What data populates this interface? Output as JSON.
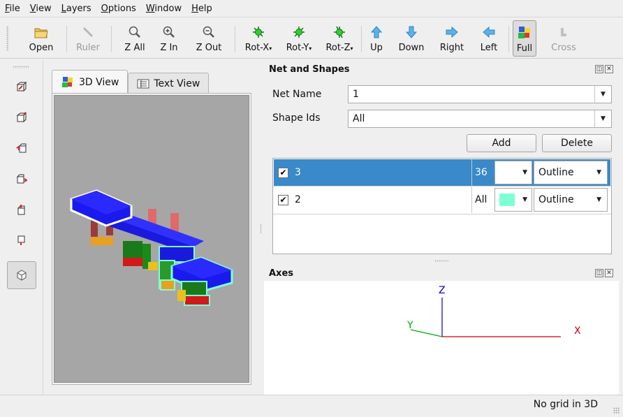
{
  "menu": [
    {
      "first": "F",
      "rest": "ile"
    },
    {
      "first": "V",
      "rest": "iew"
    },
    {
      "first": "L",
      "rest": "ayers"
    },
    {
      "first": "O",
      "rest": "ptions"
    },
    {
      "first": "W",
      "rest": "indow"
    },
    {
      "first": "H",
      "rest": "elp"
    }
  ],
  "toolbar": {
    "open": "Open",
    "ruler": "Ruler",
    "zall": "Z All",
    "zin": "Z In",
    "zout": "Z Out",
    "rotx": "Rot-X",
    "roty": "Rot-Y",
    "rotz": "Rot-Z",
    "up": "Up",
    "down": "Down",
    "right": "Right",
    "left": "Left",
    "full": "Full",
    "cross": "Cross"
  },
  "tabs": {
    "view3d": "3D View",
    "textview": "Text View"
  },
  "net_panel": {
    "title": "Net and Shapes",
    "net_name_label": "Net Name",
    "net_name_value": "1",
    "shape_ids_label": "Shape Ids",
    "shape_ids_value": "All",
    "add": "Add",
    "delete": "Delete"
  },
  "rows": [
    {
      "checked": "✔",
      "name": "3",
      "count": "36",
      "color": "#ffffff",
      "mode": "Outline"
    },
    {
      "checked": "✔",
      "name": "2",
      "count": "All",
      "color": "#7fffd4",
      "mode": "Outline"
    }
  ],
  "axes_panel": {
    "title": "Axes",
    "x_label": "X",
    "y_label": "Y",
    "z_label": "Z"
  },
  "status": {
    "text": "No grid in 3D"
  },
  "colors": {
    "selection": "#3a89c9",
    "x_axis": "#cc0000",
    "y_axis": "#00aa00",
    "z_axis": "#0000cc"
  }
}
